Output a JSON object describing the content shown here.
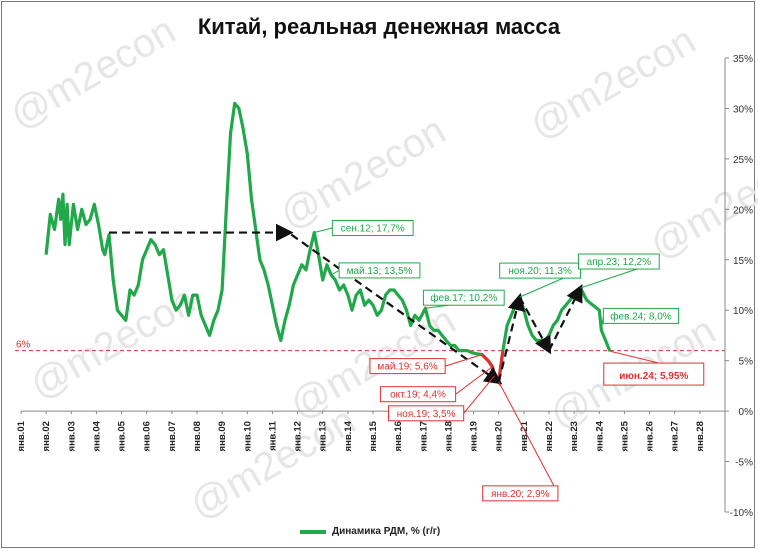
{
  "chart_data": {
    "type": "line",
    "title": "Китай, реальная денежная масса",
    "watermark": "@m2econ",
    "series": [
      {
        "name": "Динамика РДМ, % (г/г)",
        "color": "#21a84a",
        "points": [
          [
            "янв.02",
            15.5
          ],
          [
            "мар.02",
            19.5
          ],
          [
            "май.02",
            18.0
          ],
          [
            "июл.02",
            21.0
          ],
          [
            "авг.02",
            19.0
          ],
          [
            "сен.02",
            21.5
          ],
          [
            "окт.02",
            16.5
          ],
          [
            "ноя.02",
            20.5
          ],
          [
            "дек.02",
            16.5
          ],
          [
            "фев.03",
            20.5
          ],
          [
            "апр.03",
            18.0
          ],
          [
            "июн.03",
            20.0
          ],
          [
            "авг.03",
            18.5
          ],
          [
            "окт.03",
            19.0
          ],
          [
            "дек.03",
            20.5
          ],
          [
            "фев.04",
            18.5
          ],
          [
            "апр.04",
            16.0
          ],
          [
            "май.04",
            15.5
          ],
          [
            "июл.04",
            17.5
          ],
          [
            "сен.04",
            13.0
          ],
          [
            "ноя.04",
            10.0
          ],
          [
            "янв.05",
            9.5
          ],
          [
            "мар.05",
            9.0
          ],
          [
            "май.05",
            12.0
          ],
          [
            "июл.05",
            11.5
          ],
          [
            "сен.05",
            12.5
          ],
          [
            "ноя.05",
            15.0
          ],
          [
            "янв.06",
            16.0
          ],
          [
            "мар.06",
            17.0
          ],
          [
            "май.06",
            16.5
          ],
          [
            "июл.06",
            15.5
          ],
          [
            "сен.06",
            16.0
          ],
          [
            "ноя.06",
            13.5
          ],
          [
            "янв.07",
            11.0
          ],
          [
            "мар.07",
            10.0
          ],
          [
            "май.07",
            10.5
          ],
          [
            "июл.07",
            11.5
          ],
          [
            "сен.07",
            9.5
          ],
          [
            "ноя.07",
            11.5
          ],
          [
            "янв.08",
            11.5
          ],
          [
            "мар.08",
            9.5
          ],
          [
            "май.08",
            8.5
          ],
          [
            "июл.08",
            7.5
          ],
          [
            "сен.08",
            9.0
          ],
          [
            "ноя.08",
            10.0
          ],
          [
            "янв.09",
            12.0
          ],
          [
            "мар.09",
            20.0
          ],
          [
            "май.09",
            27.5
          ],
          [
            "июл.09",
            30.5
          ],
          [
            "сен.09",
            30.0
          ],
          [
            "ноя.09",
            28.0
          ],
          [
            "янв.10",
            25.5
          ],
          [
            "мар.10",
            21.0
          ],
          [
            "май.10",
            18.0
          ],
          [
            "июл.10",
            15.0
          ],
          [
            "сен.10",
            14.0
          ],
          [
            "ноя.10",
            12.5
          ],
          [
            "янв.11",
            10.5
          ],
          [
            "мар.11",
            8.5
          ],
          [
            "май.11",
            7.0
          ],
          [
            "июл.11",
            9.0
          ],
          [
            "сен.11",
            10.5
          ],
          [
            "ноя.11",
            12.5
          ],
          [
            "янв.12",
            13.5
          ],
          [
            "мар.12",
            14.5
          ],
          [
            "май.12",
            14.0
          ],
          [
            "июл.12",
            16.0
          ],
          [
            "сен.12",
            17.7
          ],
          [
            "ноя.12",
            15.5
          ],
          [
            "янв.13",
            13.0
          ],
          [
            "мар.13",
            14.5
          ],
          [
            "май.13",
            13.5
          ],
          [
            "июл.13",
            13.0
          ],
          [
            "сен.13",
            12.0
          ],
          [
            "ноя.13",
            12.5
          ],
          [
            "янв.14",
            11.5
          ],
          [
            "мар.14",
            10.0
          ],
          [
            "май.14",
            11.5
          ],
          [
            "июл.14",
            12.0
          ],
          [
            "сен.14",
            10.5
          ],
          [
            "ноя.14",
            11.0
          ],
          [
            "янв.15",
            10.5
          ],
          [
            "мар.15",
            9.5
          ],
          [
            "май.15",
            10.0
          ],
          [
            "июл.15",
            11.5
          ],
          [
            "сен.15",
            12.0
          ],
          [
            "ноя.15",
            12.0
          ],
          [
            "янв.16",
            11.5
          ],
          [
            "мар.16",
            11.0
          ],
          [
            "май.16",
            10.0
          ],
          [
            "июл.16",
            8.5
          ],
          [
            "сен.16",
            9.5
          ],
          [
            "ноя.16",
            9.0
          ],
          [
            "фев.17",
            10.2
          ],
          [
            "апр.17",
            8.5
          ],
          [
            "июн.17",
            8.0
          ],
          [
            "авг.17",
            8.0
          ],
          [
            "окт.17",
            7.5
          ],
          [
            "дек.17",
            7.0
          ],
          [
            "фев.18",
            6.5
          ],
          [
            "апр.18",
            6.5
          ],
          [
            "июн.18",
            6.0
          ],
          [
            "авг.18",
            6.0
          ],
          [
            "окт.18",
            6.0
          ],
          [
            "дек.18",
            5.8
          ],
          [
            "фев.19",
            5.7
          ],
          [
            "май.19",
            5.6
          ],
          [
            "авг.19",
            5.0
          ],
          [
            "окт.19",
            4.4
          ],
          [
            "ноя.19",
            3.5
          ],
          [
            "янв.20",
            2.9
          ],
          [
            "мар.20",
            6.0
          ],
          [
            "май.20",
            8.5
          ],
          [
            "июл.20",
            9.5
          ],
          [
            "сен.20",
            10.5
          ],
          [
            "ноя.20",
            11.3
          ],
          [
            "янв.21",
            10.0
          ],
          [
            "мар.21",
            8.5
          ],
          [
            "май.21",
            7.5
          ],
          [
            "июл.21",
            7.0
          ],
          [
            "сен.21",
            7.0
          ],
          [
            "ноя.21",
            7.0
          ],
          [
            "янв.22",
            7.5
          ],
          [
            "мар.22",
            8.5
          ],
          [
            "май.22",
            9.0
          ],
          [
            "июл.22",
            10.0
          ],
          [
            "сен.22",
            10.5
          ],
          [
            "ноя.22",
            11.0
          ],
          [
            "янв.23",
            11.5
          ],
          [
            "апр.23",
            12.2
          ],
          [
            "июл.23",
            11.0
          ],
          [
            "окт.23",
            10.5
          ],
          [
            "янв.24",
            10.0
          ],
          [
            "фев.24",
            8.0
          ],
          [
            "апр.24",
            7.0
          ],
          [
            "июн.24",
            5.95
          ]
        ]
      }
    ],
    "x_ticks": [
      "янв.01",
      "янв.02",
      "янв.03",
      "янв.04",
      "янв.05",
      "янв.06",
      "янв.07",
      "янв.08",
      "янв.09",
      "янв.10",
      "янв.11",
      "янв.12",
      "янв.13",
      "янв.14",
      "янв.15",
      "янв.16",
      "янв.17",
      "янв.18",
      "янв.19",
      "янв.20",
      "янв.21",
      "янв.22",
      "янв.23",
      "янв.24",
      "янв.25",
      "янв.26",
      "янв.27",
      "янв.28"
    ],
    "y_ticks": [
      35,
      30,
      25,
      20,
      15,
      10,
      5,
      0,
      -5,
      -10
    ],
    "y_tick_labels": [
      "35%",
      "30%",
      "25%",
      "20%",
      "15%",
      "10%",
      "5%",
      "0%",
      "-5%",
      "-10%"
    ],
    "ylim": [
      -10,
      35
    ],
    "y_axis_side": "right",
    "reference_line": {
      "value": 6,
      "label": "6%",
      "color": "#e03030"
    },
    "annotations": [
      {
        "text": "сен.12; 17,7%",
        "date": "сен.12",
        "value": 17.7,
        "color": "#21a84a"
      },
      {
        "text": "май.13; 13,5%",
        "date": "май.13",
        "value": 13.5,
        "color": "#21a84a"
      },
      {
        "text": "фев.17; 10,2%",
        "date": "фев.17",
        "value": 10.2,
        "color": "#21a84a"
      },
      {
        "text": "ноя.20; 11,3%",
        "date": "ноя.20",
        "value": 11.3,
        "color": "#21a84a"
      },
      {
        "text": "апр.23; 12,2%",
        "date": "апр.23",
        "value": 12.2,
        "color": "#21a84a"
      },
      {
        "text": "фев.24; 8,0%",
        "date": "фев.24",
        "value": 8.0,
        "color": "#21a84a"
      },
      {
        "text": "май.19; 5,6%",
        "date": "май.19",
        "value": 5.6,
        "color": "#e03030"
      },
      {
        "text": "окт.19; 4,4%",
        "date": "окт.19",
        "value": 4.4,
        "color": "#e03030"
      },
      {
        "text": "ноя.19; 3,5%",
        "date": "ноя.19",
        "value": 3.5,
        "color": "#e03030"
      },
      {
        "text": "янв.20; 2,9%",
        "date": "янв.20",
        "value": 2.9,
        "color": "#e03030"
      },
      {
        "text": "июн.24; 5,95%",
        "date": "июн.24",
        "value": 5.95,
        "color": "#e03030",
        "emphasis": true
      }
    ],
    "trend_arrows": [
      {
        "from": [
          "июл.04",
          17.7
        ],
        "to": [
          "сен.11",
          17.7
        ]
      },
      {
        "from": [
          "окт.11",
          17.5
        ],
        "to": [
          "янв.20",
          2.9
        ]
      },
      {
        "from": [
          "янв.20",
          2.9
        ],
        "to": [
          "ноя.20",
          11.3
        ]
      },
      {
        "from": [
          "ноя.20",
          11.3
        ],
        "to": [
          "янв.22",
          6.0
        ]
      },
      {
        "from": [
          "янв.22",
          6.0
        ],
        "to": [
          "апр.23",
          12.2
        ]
      }
    ],
    "legend": {
      "position": "bottom-center",
      "label": "Динамика РДМ, % (г/г)"
    },
    "grid": false
  }
}
